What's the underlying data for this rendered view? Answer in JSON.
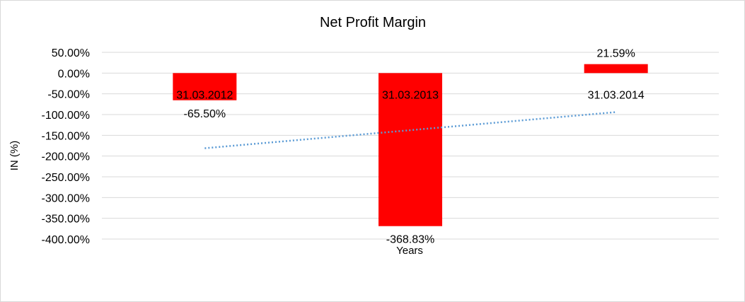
{
  "chart_data": {
    "type": "bar",
    "title": "Net Profit Margin",
    "xlabel": "Years",
    "ylabel": "IN (%)",
    "categories": [
      "31.03.2012",
      "31.03.2013",
      "31.03.2014"
    ],
    "values": [
      -65.5,
      -368.83,
      21.59
    ],
    "data_labels": [
      "-65.50%",
      "-368.83%",
      "21.59%"
    ],
    "ylim": [
      -400,
      50
    ],
    "yticks": [
      50,
      0,
      -50,
      -100,
      -150,
      -200,
      -250,
      -300,
      -350,
      -400
    ],
    "ytick_labels": [
      "50.00%",
      "0.00%",
      "-50.00%",
      "-100.00%",
      "-150.00%",
      "-200.00%",
      "-250.00%",
      "-300.00%",
      "-350.00%",
      "-400.00%"
    ],
    "grid": true,
    "trendline": {
      "type": "linear",
      "style": "dotted"
    },
    "colors": {
      "bar": "#ff0000",
      "trendline": "#5b9bd5",
      "grid": "#d9d9d9"
    }
  }
}
